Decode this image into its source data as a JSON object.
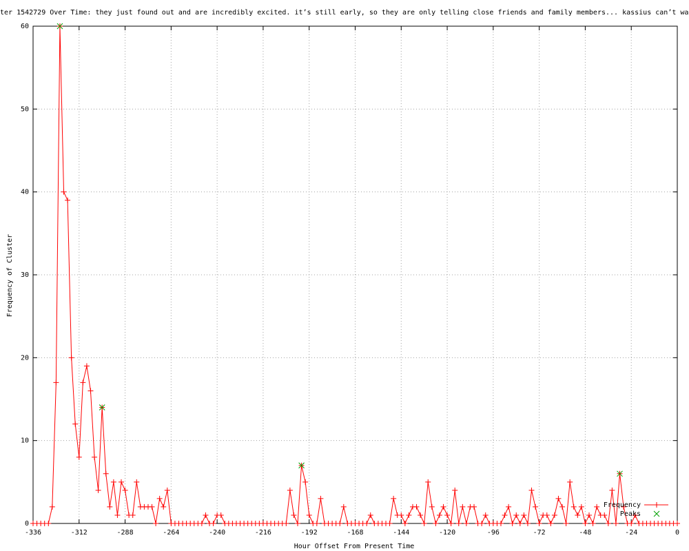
{
  "chart_data": {
    "type": "line",
    "title": "ter 1542729 Over Time: they just found out and are incredibly excited. it’s still early, so they are only telling close friends and family members... kassius can’t wai",
    "x_label": "Hour Offset From Present Time",
    "y_label": "Frequency of Cluster",
    "xlim": [
      -336,
      0
    ],
    "ylim": [
      0,
      60
    ],
    "xticks": [
      -336,
      -312,
      -288,
      -264,
      -240,
      -216,
      -192,
      -168,
      -144,
      -120,
      -96,
      -72,
      -48,
      -24,
      0
    ],
    "yticks": [
      0,
      10,
      20,
      30,
      40,
      50,
      60
    ],
    "grid": true,
    "legend": "bottom-right",
    "series": [
      {
        "name": "Frequency",
        "color": "#ff0000",
        "marker": "+",
        "x": [
          -336,
          -334,
          -332,
          -330,
          -328,
          -326,
          -324,
          -322,
          -320,
          -318,
          -316,
          -314,
          -312,
          -310,
          -308,
          -306,
          -304,
          -302,
          -300,
          -298,
          -296,
          -294,
          -292,
          -290,
          -288,
          -286,
          -284,
          -282,
          -280,
          -278,
          -276,
          -274,
          -272,
          -270,
          -268,
          -266,
          -264,
          -262,
          -260,
          -258,
          -256,
          -254,
          -252,
          -250,
          -248,
          -246,
          -244,
          -242,
          -240,
          -238,
          -236,
          -234,
          -232,
          -230,
          -228,
          -226,
          -224,
          -222,
          -220,
          -218,
          -216,
          -214,
          -212,
          -210,
          -208,
          -206,
          -204,
          -202,
          -200,
          -198,
          -196,
          -194,
          -192,
          -190,
          -188,
          -186,
          -184,
          -182,
          -180,
          -178,
          -176,
          -174,
          -172,
          -170,
          -168,
          -166,
          -164,
          -162,
          -160,
          -158,
          -156,
          -154,
          -152,
          -150,
          -148,
          -146,
          -144,
          -142,
          -140,
          -138,
          -136,
          -134,
          -132,
          -130,
          -128,
          -126,
          -124,
          -122,
          -120,
          -118,
          -116,
          -114,
          -112,
          -110,
          -108,
          -106,
          -104,
          -102,
          -100,
          -98,
          -96,
          -94,
          -92,
          -90,
          -88,
          -86,
          -84,
          -82,
          -80,
          -78,
          -76,
          -74,
          -72,
          -70,
          -68,
          -66,
          -64,
          -62,
          -60,
          -58,
          -56,
          -54,
          -52,
          -50,
          -48,
          -46,
          -44,
          -42,
          -40,
          -38,
          -36,
          -34,
          -32,
          -30,
          -28,
          -26,
          -24,
          -22,
          -20,
          -18,
          -16,
          -14,
          -12,
          -10,
          -8,
          -6,
          -4,
          -2,
          0
        ],
        "values": [
          0,
          0,
          0,
          0,
          0,
          2,
          17,
          60,
          40,
          39,
          20,
          12,
          8,
          17,
          19,
          16,
          8,
          4,
          14,
          6,
          2,
          5,
          1,
          5,
          4,
          1,
          1,
          5,
          2,
          2,
          2,
          2,
          0,
          3,
          2,
          4,
          0,
          0,
          0,
          0,
          0,
          0,
          0,
          0,
          0,
          1,
          0,
          0,
          1,
          1,
          0,
          0,
          0,
          0,
          0,
          0,
          0,
          0,
          0,
          0,
          0,
          0,
          0,
          0,
          0,
          0,
          0,
          4,
          1,
          0,
          7,
          5,
          1,
          0,
          0,
          3,
          0,
          0,
          0,
          0,
          0,
          2,
          0,
          0,
          0,
          0,
          0,
          0,
          1,
          0,
          0,
          0,
          0,
          0,
          3,
          1,
          1,
          0,
          1,
          2,
          2,
          1,
          0,
          5,
          2,
          0,
          1,
          2,
          1,
          0,
          4,
          0,
          2,
          0,
          2,
          2,
          0,
          0,
          1,
          0,
          0,
          0,
          0,
          1,
          2,
          0,
          1,
          0,
          1,
          0,
          4,
          2,
          0,
          1,
          1,
          0,
          1,
          3,
          2,
          0,
          5,
          2,
          1,
          2,
          0,
          1,
          0,
          2,
          1,
          1,
          0,
          4,
          0,
          6,
          2,
          0,
          0,
          1,
          0,
          0,
          0,
          0,
          0,
          0,
          0,
          0,
          0,
          0,
          0
        ]
      },
      {
        "name": "Peaks",
        "color": "#00a000",
        "marker": "x",
        "x": [
          -322,
          -300,
          -196,
          -30
        ],
        "values": [
          60,
          14,
          7,
          6
        ]
      }
    ]
  }
}
